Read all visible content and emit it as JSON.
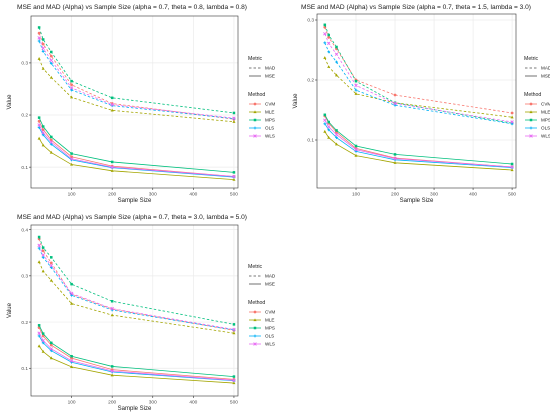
{
  "chart_data": [
    {
      "type": "line",
      "title": "MSE and MAD (Alpha) vs Sample Size (alpha = 0.7, theta = 0.8, lambda = 0.8)",
      "xlabel": "Sample Size",
      "ylabel": "Value",
      "x": [
        20,
        30,
        50,
        100,
        200,
        500
      ],
      "xlim": [
        0,
        510
      ],
      "ylim": [
        0.06,
        0.39
      ],
      "xticks": [
        "100",
        "200",
        "300",
        "400",
        "500"
      ],
      "yticks": [
        "0.1",
        "0.2",
        "0.3"
      ],
      "series": [
        {
          "name": "CVM",
          "metric": "MAD",
          "values": [
            0.357,
            0.336,
            0.313,
            0.258,
            0.222,
            0.192
          ]
        },
        {
          "name": "MLE",
          "metric": "MAD",
          "values": [
            0.308,
            0.289,
            0.272,
            0.234,
            0.209,
            0.187
          ]
        },
        {
          "name": "MPS",
          "metric": "MAD",
          "values": [
            0.368,
            0.345,
            0.321,
            0.265,
            0.233,
            0.204
          ]
        },
        {
          "name": "OLS",
          "metric": "MAD",
          "values": [
            0.342,
            0.322,
            0.299,
            0.248,
            0.218,
            0.193
          ]
        },
        {
          "name": "WLS",
          "metric": "MAD",
          "values": [
            0.348,
            0.328,
            0.305,
            0.252,
            0.22,
            0.194
          ]
        },
        {
          "name": "CVM",
          "metric": "MSE",
          "values": [
            0.188,
            0.172,
            0.152,
            0.12,
            0.102,
            0.082
          ]
        },
        {
          "name": "MLE",
          "metric": "MSE",
          "values": [
            0.155,
            0.142,
            0.128,
            0.105,
            0.093,
            0.076
          ]
        },
        {
          "name": "MPS",
          "metric": "MSE",
          "values": [
            0.195,
            0.178,
            0.158,
            0.126,
            0.11,
            0.09
          ]
        },
        {
          "name": "OLS",
          "metric": "MSE",
          "values": [
            0.176,
            0.162,
            0.144,
            0.114,
            0.099,
            0.081
          ]
        },
        {
          "name": "WLS",
          "metric": "MSE",
          "values": [
            0.181,
            0.166,
            0.148,
            0.116,
            0.1,
            0.082
          ]
        }
      ]
    },
    {
      "type": "line",
      "title": "MSE and MAD (Alpha) vs Sample Size (alpha = 0.7, theta = 1.5, lambda = 3.0)",
      "xlabel": "Sample Size",
      "ylabel": "Value",
      "x": [
        20,
        30,
        50,
        100,
        200,
        500
      ],
      "xlim": [
        0,
        510
      ],
      "ylim": [
        0.02,
        0.31
      ],
      "xticks": [
        "100",
        "200",
        "300",
        "400",
        "500"
      ],
      "yticks": [
        "0.1",
        "0.2",
        "0.3"
      ],
      "series": [
        {
          "name": "CVM",
          "metric": "MAD",
          "values": [
            0.288,
            0.271,
            0.252,
            0.2,
            0.175,
            0.145
          ]
        },
        {
          "name": "MLE",
          "metric": "MAD",
          "values": [
            0.237,
            0.222,
            0.208,
            0.177,
            0.162,
            0.138
          ]
        },
        {
          "name": "MPS",
          "metric": "MAD",
          "values": [
            0.292,
            0.275,
            0.255,
            0.198,
            0.162,
            0.128
          ]
        },
        {
          "name": "OLS",
          "metric": "MAD",
          "values": [
            0.262,
            0.247,
            0.23,
            0.183,
            0.158,
            0.127
          ]
        },
        {
          "name": "WLS",
          "metric": "MAD",
          "values": [
            0.277,
            0.261,
            0.243,
            0.191,
            0.161,
            0.13
          ]
        },
        {
          "name": "CVM",
          "metric": "MSE",
          "values": [
            0.14,
            0.128,
            0.113,
            0.086,
            0.07,
            0.055
          ]
        },
        {
          "name": "MLE",
          "metric": "MSE",
          "values": [
            0.114,
            0.104,
            0.093,
            0.074,
            0.062,
            0.05
          ]
        },
        {
          "name": "MPS",
          "metric": "MSE",
          "values": [
            0.142,
            0.13,
            0.116,
            0.09,
            0.076,
            0.06
          ]
        },
        {
          "name": "OLS",
          "metric": "MSE",
          "values": [
            0.127,
            0.117,
            0.104,
            0.081,
            0.067,
            0.054
          ]
        },
        {
          "name": "WLS",
          "metric": "MSE",
          "values": [
            0.133,
            0.122,
            0.109,
            0.084,
            0.069,
            0.055
          ]
        }
      ]
    },
    {
      "type": "line",
      "title": "MSE and MAD (Alpha) vs Sample Size (alpha = 0.7, theta = 3.0, lambda = 5.0)",
      "xlabel": "Sample Size",
      "ylabel": "Value",
      "x": [
        20,
        30,
        50,
        100,
        200,
        500
      ],
      "xlim": [
        0,
        510
      ],
      "ylim": [
        0.04,
        0.41
      ],
      "xticks": [
        "100",
        "200",
        "300",
        "400",
        "500"
      ],
      "yticks": [
        "0.1",
        "0.2",
        "0.3",
        "0.4"
      ],
      "series": [
        {
          "name": "CVM",
          "metric": "MAD",
          "values": [
            0.38,
            0.354,
            0.328,
            0.26,
            0.228,
            0.182
          ]
        },
        {
          "name": "MLE",
          "metric": "MAD",
          "values": [
            0.33,
            0.31,
            0.29,
            0.24,
            0.215,
            0.176
          ]
        },
        {
          "name": "MPS",
          "metric": "MAD",
          "values": [
            0.384,
            0.361,
            0.34,
            0.282,
            0.245,
            0.195
          ]
        },
        {
          "name": "OLS",
          "metric": "MAD",
          "values": [
            0.36,
            0.34,
            0.318,
            0.258,
            0.226,
            0.183
          ]
        },
        {
          "name": "WLS",
          "metric": "MAD",
          "values": [
            0.366,
            0.345,
            0.322,
            0.262,
            0.229,
            0.184
          ]
        },
        {
          "name": "CVM",
          "metric": "MSE",
          "values": [
            0.188,
            0.17,
            0.15,
            0.122,
            0.097,
            0.076
          ]
        },
        {
          "name": "MLE",
          "metric": "MSE",
          "values": [
            0.148,
            0.136,
            0.122,
            0.103,
            0.085,
            0.068
          ]
        },
        {
          "name": "MPS",
          "metric": "MSE",
          "values": [
            0.193,
            0.175,
            0.155,
            0.126,
            0.104,
            0.082
          ]
        },
        {
          "name": "OLS",
          "metric": "MSE",
          "values": [
            0.17,
            0.155,
            0.138,
            0.113,
            0.092,
            0.073
          ]
        },
        {
          "name": "WLS",
          "metric": "MSE",
          "values": [
            0.176,
            0.16,
            0.142,
            0.116,
            0.094,
            0.074
          ]
        }
      ]
    }
  ],
  "legend": {
    "metric_title": "Metric",
    "metric_items": [
      "MAD",
      "MSE"
    ],
    "method_title": "Method",
    "method_items": [
      "CVM",
      "MLE",
      "MPS",
      "OLS",
      "WLS"
    ]
  },
  "colors": {
    "CVM": "#f8766d",
    "MLE": "#a3a500",
    "MPS": "#00bf7d",
    "OLS": "#00b0f6",
    "WLS": "#e76bf3",
    "panel_bg": "#ffffff",
    "grid": "#ebebeb",
    "panel_border": "#333333",
    "line_dark": "#4d4d4d"
  }
}
